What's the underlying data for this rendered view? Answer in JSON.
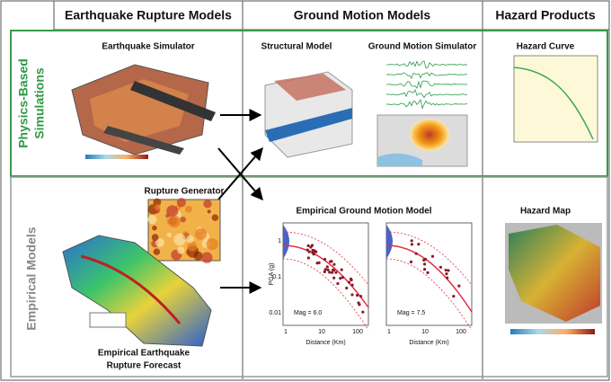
{
  "columns": [
    "Earthquake Rupture Models",
    "Ground Motion Models",
    "Hazard Products"
  ],
  "rows": [
    {
      "lines": [
        "Physics-Based",
        "Simulations"
      ]
    },
    {
      "lines": [
        "Empirical Models"
      ]
    }
  ],
  "panels": {
    "earthquake_simulator": "Earthquake Simulator",
    "structural_model": "Structural Model",
    "ground_motion_simulator": "Ground Motion Simulator",
    "hazard_curve": "Hazard Curve",
    "rupture_generator": "Rupture Generator",
    "rupture_forecast": [
      "Empirical Earthquake",
      "Rupture Forecast"
    ],
    "hazard_map": "Hazard Map"
  },
  "empirical_gmm": {
    "title": "Empirical Ground Motion Model",
    "y_label": "PGA (g)",
    "x_label": "Distance (Km)",
    "y_ticks": [
      "1",
      "0.1",
      "0.01"
    ],
    "x_ticks": [
      "1",
      "10",
      "100"
    ],
    "plots": [
      {
        "label": "Mag = 6.0"
      },
      {
        "label": "Mag = 7.5"
      }
    ]
  }
}
